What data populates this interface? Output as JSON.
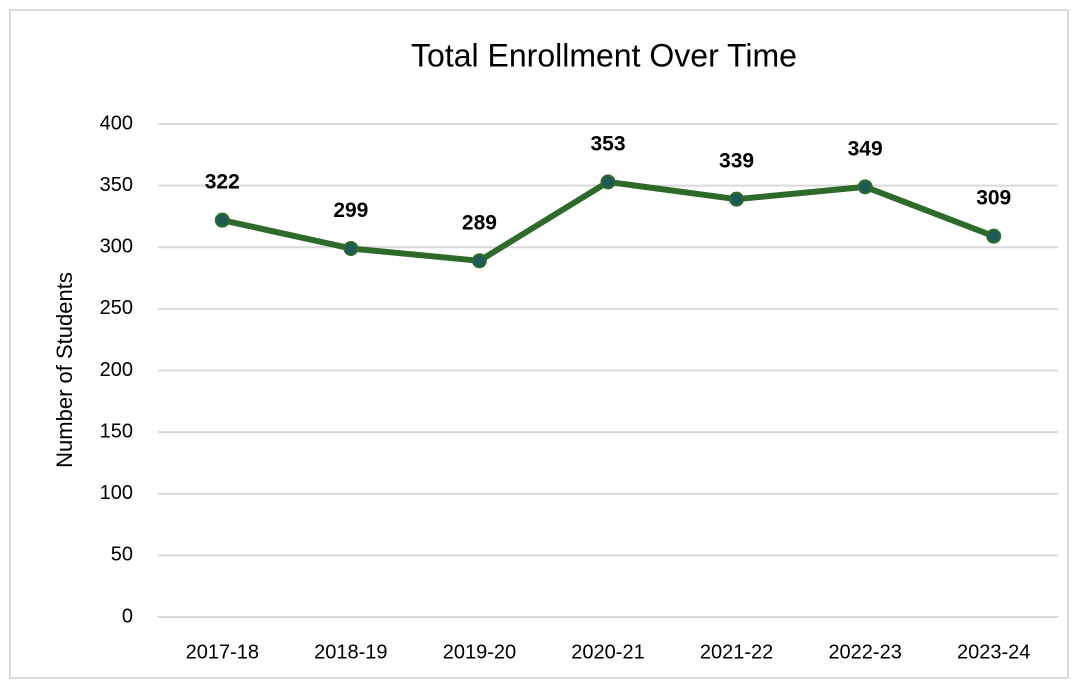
{
  "chart_data": {
    "type": "line",
    "title": "Total Enrollment Over Time",
    "y_label": "Number of Students",
    "categories": [
      "2017-18",
      "2018-19",
      "2019-20",
      "2020-21",
      "2021-22",
      "2022-23",
      "2023-24"
    ],
    "series": [
      {
        "name": "Total Enrollment",
        "color": "#2e6b2a",
        "marker_color": "#1f5a5a",
        "values": [
          322,
          299,
          289,
          353,
          339,
          349,
          309
        ]
      }
    ],
    "ylim": [
      0,
      400
    ],
    "yticks": [
      0,
      50,
      100,
      150,
      200,
      250,
      300,
      350,
      400
    ],
    "grid": true,
    "data_labels": true
  }
}
